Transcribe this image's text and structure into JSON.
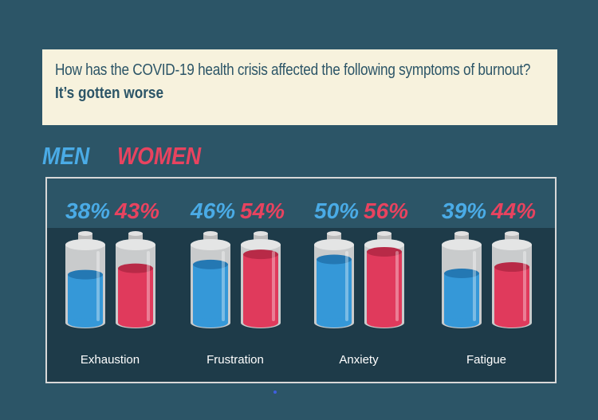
{
  "question": "How has the COVID-19 health crisis affected the following symptoms of burnout?",
  "answer": "It’s gotten worse",
  "legend": {
    "men": "MEN",
    "women": "WOMEN"
  },
  "colors": {
    "men": "#3598d8",
    "women": "#e03a5c",
    "men_label": "#4aabe6",
    "women_label": "#e8435f"
  },
  "chart_data": {
    "type": "bar",
    "categories": [
      "Exhaustion",
      "Frustration",
      "Anxiety",
      "Fatigue"
    ],
    "series": [
      {
        "name": "MEN",
        "values": [
          38,
          46,
          50,
          39
        ],
        "labels": [
          "38%",
          "46%",
          "50%",
          "39%"
        ]
      },
      {
        "name": "WOMEN",
        "values": [
          43,
          54,
          56,
          44
        ],
        "labels": [
          "43%",
          "54%",
          "56%",
          "44%"
        ]
      }
    ],
    "ylim": [
      0,
      100
    ]
  }
}
